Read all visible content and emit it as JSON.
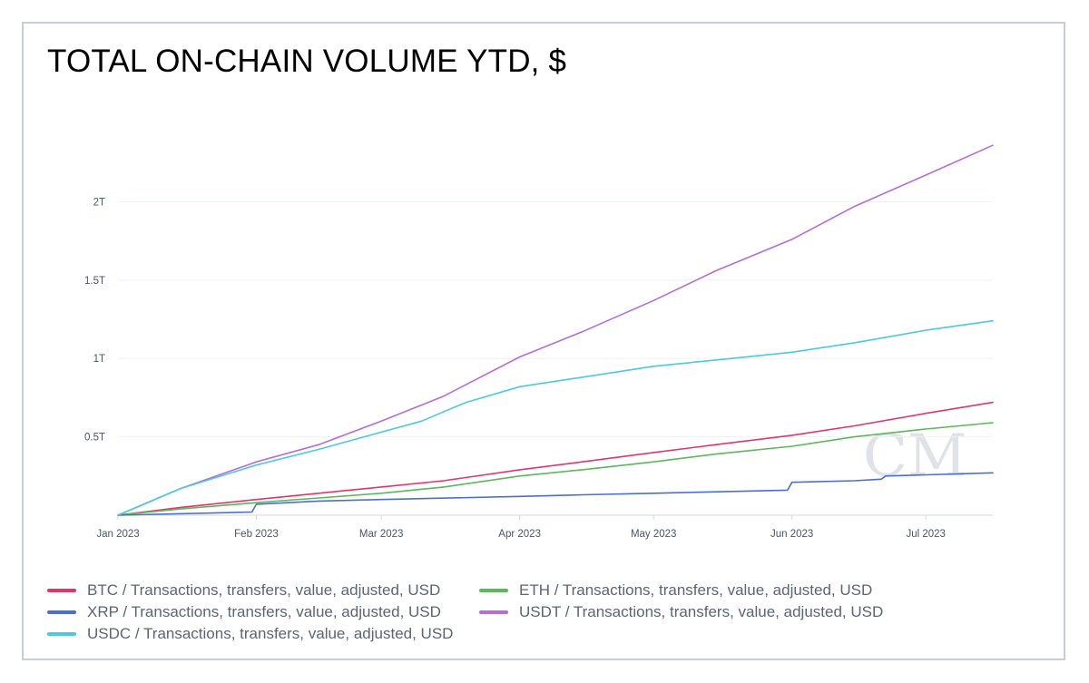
{
  "chart_data": {
    "type": "line",
    "title": "TOTAL ON-CHAIN VOLUME YTD, $",
    "watermark": "CM",
    "x_tick_labels": [
      "Jan 2023",
      "Feb 2023",
      "Mar 2023",
      "Apr 2023",
      "May 2023",
      "Jun 2023",
      "Jul 2023"
    ],
    "x_tick_dates": [
      "2023-01-01",
      "2023-02-01",
      "2023-03-01",
      "2023-04-01",
      "2023-05-01",
      "2023-06-01",
      "2023-07-01"
    ],
    "xlim": [
      "2023-01-01",
      "2023-07-16"
    ],
    "ylim": [
      0,
      2.5
    ],
    "y_unit": "T",
    "y_ticks": [
      0.5,
      1,
      1.5,
      2
    ],
    "y_tick_labels": [
      "0.5T",
      "1T",
      "1.5T",
      "2T"
    ],
    "grid": "horizontal",
    "legend_position": "bottom",
    "series": [
      {
        "name": "BTC / Transactions, transfers, value, adjusted, USD",
        "color": "#e0376a",
        "points": [
          [
            "2023-01-01",
            0
          ],
          [
            "2023-01-15",
            0.05
          ],
          [
            "2023-02-01",
            0.1
          ],
          [
            "2023-02-15",
            0.14
          ],
          [
            "2023-03-01",
            0.18
          ],
          [
            "2023-03-15",
            0.22
          ],
          [
            "2023-04-01",
            0.29
          ],
          [
            "2023-04-15",
            0.34
          ],
          [
            "2023-05-01",
            0.4
          ],
          [
            "2023-05-15",
            0.45
          ],
          [
            "2023-06-01",
            0.51
          ],
          [
            "2023-06-15",
            0.57
          ],
          [
            "2023-07-01",
            0.65
          ],
          [
            "2023-07-16",
            0.72
          ]
        ]
      },
      {
        "name": "ETH / Transactions, transfers, value, adjusted, USD",
        "color": "#5cb85c",
        "points": [
          [
            "2023-01-01",
            0
          ],
          [
            "2023-01-15",
            0.04
          ],
          [
            "2023-02-01",
            0.08
          ],
          [
            "2023-02-15",
            0.11
          ],
          [
            "2023-03-01",
            0.14
          ],
          [
            "2023-03-15",
            0.18
          ],
          [
            "2023-04-01",
            0.25
          ],
          [
            "2023-04-15",
            0.29
          ],
          [
            "2023-05-01",
            0.34
          ],
          [
            "2023-05-15",
            0.39
          ],
          [
            "2023-06-01",
            0.44
          ],
          [
            "2023-06-15",
            0.5
          ],
          [
            "2023-07-01",
            0.55
          ],
          [
            "2023-07-16",
            0.59
          ]
        ]
      },
      {
        "name": "XRP / Transactions, transfers, value, adjusted, USD",
        "color": "#4a6fd1",
        "points": [
          [
            "2023-01-01",
            0
          ],
          [
            "2023-01-31",
            0.02
          ],
          [
            "2023-02-01",
            0.07
          ],
          [
            "2023-02-15",
            0.09
          ],
          [
            "2023-03-01",
            0.1
          ],
          [
            "2023-04-01",
            0.12
          ],
          [
            "2023-04-15",
            0.13
          ],
          [
            "2023-05-01",
            0.14
          ],
          [
            "2023-05-31",
            0.16
          ],
          [
            "2023-06-01",
            0.21
          ],
          [
            "2023-06-15",
            0.22
          ],
          [
            "2023-06-21",
            0.23
          ],
          [
            "2023-06-22",
            0.25
          ],
          [
            "2023-07-16",
            0.27
          ]
        ]
      },
      {
        "name": "USDT / Transactions, transfers, value, adjusted, USD",
        "color": "#b36ed8",
        "points": [
          [
            "2023-01-01",
            0
          ],
          [
            "2023-01-15",
            0.17
          ],
          [
            "2023-02-01",
            0.34
          ],
          [
            "2023-02-15",
            0.45
          ],
          [
            "2023-03-01",
            0.6
          ],
          [
            "2023-03-15",
            0.76
          ],
          [
            "2023-04-01",
            1.01
          ],
          [
            "2023-04-15",
            1.17
          ],
          [
            "2023-05-01",
            1.37
          ],
          [
            "2023-05-15",
            1.56
          ],
          [
            "2023-06-01",
            1.76
          ],
          [
            "2023-06-15",
            1.97
          ],
          [
            "2023-07-01",
            2.17
          ],
          [
            "2023-07-16",
            2.36
          ]
        ]
      },
      {
        "name": "USDC / Transactions, transfers, value, adjusted, USD",
        "color": "#4cc9de",
        "points": [
          [
            "2023-01-01",
            0
          ],
          [
            "2023-01-15",
            0.17
          ],
          [
            "2023-02-01",
            0.32
          ],
          [
            "2023-02-15",
            0.42
          ],
          [
            "2023-03-01",
            0.53
          ],
          [
            "2023-03-10",
            0.6
          ],
          [
            "2023-03-20",
            0.72
          ],
          [
            "2023-04-01",
            0.82
          ],
          [
            "2023-04-15",
            0.88
          ],
          [
            "2023-05-01",
            0.95
          ],
          [
            "2023-05-15",
            0.99
          ],
          [
            "2023-06-01",
            1.04
          ],
          [
            "2023-06-15",
            1.1
          ],
          [
            "2023-07-01",
            1.18
          ],
          [
            "2023-07-16",
            1.24
          ]
        ]
      }
    ]
  },
  "legend_order": [
    0,
    1,
    2,
    3,
    4
  ]
}
